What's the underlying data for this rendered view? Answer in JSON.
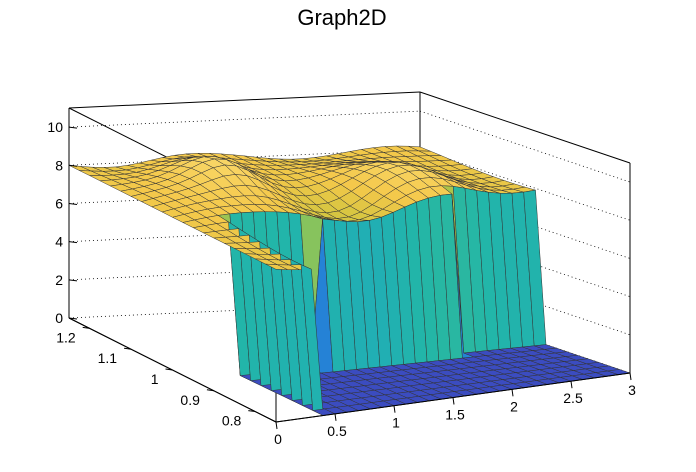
{
  "chart_data": {
    "type": "surface",
    "title": "Graph2D",
    "x_axis": {
      "range": [
        0,
        3
      ],
      "ticks": [
        "0",
        "0.5",
        "1",
        "1.5",
        "2",
        "2.5",
        "3"
      ]
    },
    "y_axis": {
      "range": [
        0.75,
        1.25
      ],
      "ticks": [
        "0.8",
        "0.9",
        "1",
        "1.1",
        "1.2"
      ]
    },
    "z_axis": {
      "range": [
        0,
        11
      ],
      "ticks": [
        "0",
        "2",
        "4",
        "6",
        "8",
        "10"
      ]
    },
    "grid": true,
    "colormap": [
      "#3b4cc0",
      "#2a6fd6",
      "#1e9ad6",
      "#22b6a8",
      "#6cc36a",
      "#c8c43d",
      "#f4c84a",
      "#f9d86a"
    ],
    "surface_description_levels": {
      "plateau_height": 8,
      "peak_height": 9.5,
      "floor_height": 0,
      "hole_x_range": [
        0.4,
        1.0
      ],
      "hole_y_range": [
        0.75,
        0.95
      ],
      "hole2_x_range": [
        2.3,
        3.0
      ],
      "hole2_y_range": [
        0.75,
        0.95
      ]
    }
  }
}
